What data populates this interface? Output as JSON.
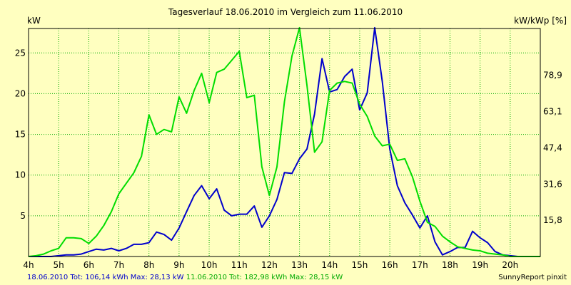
{
  "chart_data": {
    "type": "line",
    "title": "Tagesverlauf 18.06.2010 im Vergleich zum 11.06.2010",
    "ylabel_left": "kW",
    "ylabel_right": "kW/kWp [%]",
    "x_ticks": [
      "4h",
      "5h",
      "6h",
      "7h",
      "8h",
      "9h",
      "10h",
      "11h",
      "12h",
      "13h",
      "14h",
      "15h",
      "16h",
      "17h",
      "18h",
      "19h",
      "20h"
    ],
    "x_range": [
      4,
      21
    ],
    "y_ticks_left": [
      "5",
      "10",
      "15",
      "20",
      "25"
    ],
    "y_ticks_right": [
      "15,8",
      "31,6",
      "47,4",
      "63,1",
      "78,9"
    ],
    "ylim": [
      0,
      28
    ],
    "grid": true,
    "series": [
      {
        "name": "18.06.2010",
        "color": "#0000cc",
        "x": [
          4,
          4.25,
          4.5,
          4.75,
          5,
          5.25,
          5.5,
          5.75,
          6,
          6.25,
          6.5,
          6.75,
          7,
          7.25,
          7.5,
          7.75,
          8,
          8.25,
          8.5,
          8.75,
          9,
          9.25,
          9.5,
          9.75,
          10,
          10.25,
          10.5,
          10.75,
          11,
          11.25,
          11.5,
          11.75,
          12,
          12.25,
          12.5,
          12.75,
          13,
          13.25,
          13.5,
          13.75,
          14,
          14.25,
          14.5,
          14.75,
          15,
          15.25,
          15.5,
          15.75,
          16,
          16.25,
          16.5,
          16.75,
          17,
          17.25,
          17.5,
          17.75,
          18,
          18.25,
          18.5,
          18.75,
          19,
          19.25,
          19.5,
          19.75,
          20,
          20.25,
          20.5,
          20.75,
          21
        ],
        "values": [
          0,
          0,
          0,
          0,
          0.1,
          0.2,
          0.2,
          0.3,
          0.6,
          0.9,
          0.8,
          1.0,
          0.7,
          1.0,
          1.5,
          1.5,
          1.7,
          3.0,
          2.7,
          2.0,
          3.5,
          5.5,
          7.5,
          8.7,
          7.1,
          8.3,
          5.7,
          5.0,
          5.2,
          5.2,
          6.2,
          3.6,
          5.0,
          7.0,
          10.3,
          10.2,
          12.0,
          13.2,
          17.5,
          24.3,
          20.2,
          20.5,
          22.1,
          23.0,
          18.0,
          20.1,
          28.1,
          21.5,
          13.2,
          8.7,
          6.6,
          5.1,
          3.5,
          5.0,
          1.8,
          0.2,
          0.6,
          1.1,
          1.1,
          3.1,
          2.3,
          1.7,
          0.6,
          0.2,
          0.1,
          0,
          0,
          0,
          0
        ]
      },
      {
        "name": "11.06.2010",
        "color": "#00dd00",
        "x": [
          4,
          4.25,
          4.5,
          4.75,
          5,
          5.25,
          5.5,
          5.75,
          6,
          6.25,
          6.5,
          6.75,
          7,
          7.25,
          7.5,
          7.75,
          8,
          8.25,
          8.5,
          8.75,
          9,
          9.25,
          9.5,
          9.75,
          10,
          10.25,
          10.5,
          10.75,
          11,
          11.25,
          11.5,
          11.75,
          12,
          12.25,
          12.5,
          12.75,
          13,
          13.25,
          13.5,
          13.75,
          14,
          14.25,
          14.5,
          14.75,
          15,
          15.25,
          15.5,
          15.75,
          16,
          16.25,
          16.5,
          16.75,
          17,
          17.25,
          17.5,
          17.75,
          18,
          18.25,
          18.5,
          18.75,
          19,
          19.25,
          19.5,
          19.75,
          20,
          20.25,
          20.5,
          20.75,
          21
        ],
        "values": [
          0,
          0.1,
          0.3,
          0.7,
          1.0,
          2.3,
          2.3,
          2.2,
          1.6,
          2.5,
          3.8,
          5.5,
          7.7,
          9.0,
          10.3,
          12.3,
          17.4,
          15.0,
          15.6,
          15.3,
          19.6,
          17.6,
          20.4,
          22.5,
          18.9,
          22.6,
          23.0,
          24.1,
          25.2,
          19.5,
          19.8,
          11.0,
          7.5,
          11.0,
          19.0,
          24.6,
          28.1,
          21.0,
          12.8,
          14.1,
          20.4,
          21.3,
          21.5,
          21.3,
          18.7,
          17.2,
          14.8,
          13.6,
          13.8,
          11.8,
          12.0,
          9.8,
          6.8,
          4.2,
          3.7,
          2.5,
          1.8,
          1.2,
          1.0,
          0.8,
          0.7,
          0.4,
          0.3,
          0.2,
          0,
          0,
          0,
          0,
          0
        ]
      }
    ]
  },
  "legend": {
    "blue_text": "18.06.2010 Tot: 106,14 kWh Max: 28,13 kW",
    "green_text": "11.06.2010 Tot: 182,98 kWh Max: 28,15 kW"
  },
  "credit": "SunnyReport pinxit"
}
